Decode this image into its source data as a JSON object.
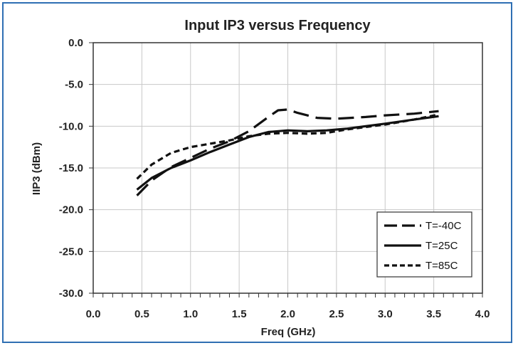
{
  "chart_data": {
    "type": "line",
    "title": "Input IP3 versus Frequency",
    "xlabel": "Freq (GHz)",
    "ylabel": "IIP3 (dBm)",
    "xlim": [
      0.0,
      4.0
    ],
    "ylim": [
      -30.0,
      0.0
    ],
    "x_ticks": [
      "0.0",
      "0.5",
      "1.0",
      "1.5",
      "2.0",
      "2.5",
      "3.0",
      "3.5",
      "4.0"
    ],
    "y_ticks": [
      "0.0",
      "-5.0",
      "-10.0",
      "-15.0",
      "-20.0",
      "-25.0",
      "-30.0"
    ],
    "grid": true,
    "legend_position": "bottom-right",
    "series": [
      {
        "name": "T=-40C",
        "style": "long-dash",
        "x": [
          0.45,
          0.6,
          0.8,
          1.0,
          1.2,
          1.4,
          1.6,
          1.8,
          1.9,
          2.0,
          2.1,
          2.3,
          2.5,
          2.8,
          3.0,
          3.3,
          3.55
        ],
        "y": [
          -18.3,
          -16.5,
          -14.9,
          -13.8,
          -12.7,
          -11.8,
          -10.6,
          -8.9,
          -8.1,
          -8.0,
          -8.4,
          -9.0,
          -9.1,
          -8.9,
          -8.7,
          -8.5,
          -8.2
        ]
      },
      {
        "name": "T=25C",
        "style": "solid",
        "x": [
          0.45,
          0.6,
          0.8,
          1.0,
          1.2,
          1.4,
          1.6,
          1.8,
          2.0,
          2.2,
          2.4,
          2.6,
          2.8,
          3.0,
          3.3,
          3.55
        ],
        "y": [
          -17.6,
          -16.2,
          -15.0,
          -14.1,
          -13.1,
          -12.2,
          -11.3,
          -10.7,
          -10.5,
          -10.6,
          -10.5,
          -10.3,
          -10.0,
          -9.7,
          -9.2,
          -8.8
        ]
      },
      {
        "name": "T=85C",
        "style": "short-dash",
        "x": [
          0.45,
          0.6,
          0.8,
          1.0,
          1.2,
          1.4,
          1.6,
          1.8,
          2.0,
          2.2,
          2.4,
          2.6,
          2.8,
          3.0,
          3.3,
          3.55
        ],
        "y": [
          -16.3,
          -14.6,
          -13.2,
          -12.5,
          -12.1,
          -11.7,
          -11.2,
          -10.9,
          -10.8,
          -10.9,
          -10.8,
          -10.4,
          -10.1,
          -9.8,
          -9.2,
          -8.6
        ]
      }
    ]
  }
}
